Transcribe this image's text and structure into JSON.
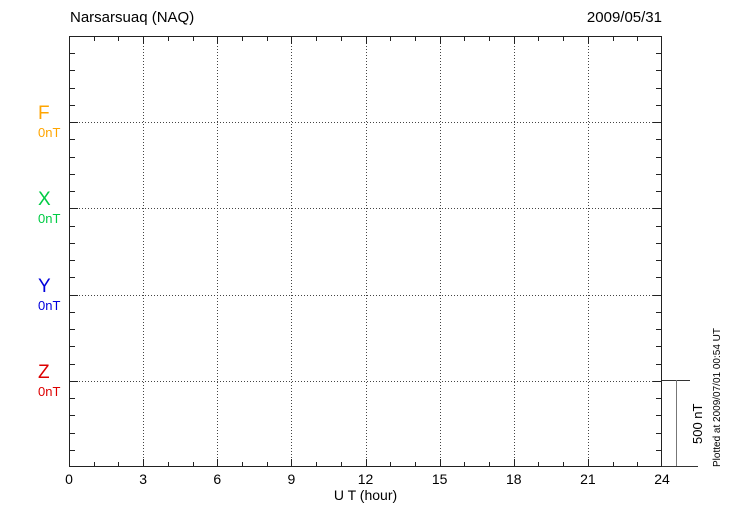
{
  "chart_data": {
    "type": "line",
    "title": "Narsarsuaq (NAQ)",
    "date": "2009/05/31",
    "xlabel": "U T (hour)",
    "x_range_hours": [
      0,
      24
    ],
    "x_tick_labels": [
      "0",
      "3",
      "6",
      "9",
      "12",
      "15",
      "18",
      "21",
      "24"
    ],
    "x_minor_tick_step_hours": 1,
    "x_major_tick_step_hours": 3,
    "y_minor_division_nT": 100,
    "component_baseline_spacing_nT": 500,
    "grid": "dotted vertical lines every 3 hours, dotted horizontal line at each component 0 nT baseline",
    "legend_position": "left margin",
    "series": [
      {
        "name": "F",
        "baseline_label": "0nT",
        "color": "#FFA500",
        "values": []
      },
      {
        "name": "X",
        "baseline_label": "0nT",
        "color": "#00CC44",
        "values": []
      },
      {
        "name": "Y",
        "baseline_label": "0nT",
        "color": "#0000DD",
        "values": []
      },
      {
        "name": "Z",
        "baseline_label": "0nT",
        "color": "#DD0000",
        "values": []
      }
    ],
    "no_data_plotted": true,
    "scale_bar": {
      "label": "500 nT"
    }
  },
  "annotations": {
    "plotted_at": "Plotted at 2009/07/01 00:54 UT"
  }
}
